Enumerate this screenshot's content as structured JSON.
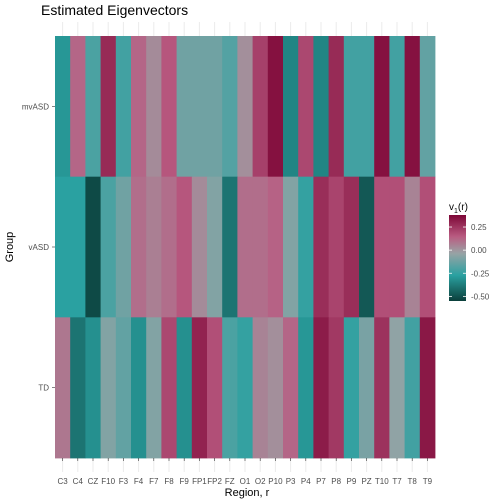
{
  "chart_data": {
    "type": "heatmap",
    "title": "Estimated Eigenvectors",
    "xlabel": "Region, r",
    "ylabel": "Group",
    "x_categories": [
      "C3",
      "C4",
      "CZ",
      "F10",
      "F3",
      "F4",
      "F7",
      "F8",
      "F9",
      "FP1",
      "FP2",
      "FZ",
      "O1",
      "O2",
      "P10",
      "P3",
      "P4",
      "P7",
      "P8",
      "P9",
      "PZ",
      "T10",
      "T7",
      "T8",
      "T9"
    ],
    "y_categories": [
      "mvASD",
      "vASD",
      "TD"
    ],
    "values": {
      "mvASD": [
        -0.3,
        0.12,
        -0.2,
        0.28,
        -0.22,
        0.12,
        0.03,
        0.16,
        -0.12,
        -0.12,
        -0.12,
        -0.18,
        0.02,
        0.22,
        0.35,
        -0.35,
        0.2,
        -0.35,
        0.28,
        -0.22,
        -0.22,
        0.35,
        -0.22,
        0.35,
        -0.15
      ],
      "vASD": [
        -0.27,
        -0.27,
        -0.52,
        -0.2,
        -0.12,
        0.1,
        0.06,
        0.1,
        0.16,
        0.03,
        -0.08,
        -0.4,
        0.1,
        0.1,
        0.13,
        -0.08,
        -0.25,
        0.27,
        0.21,
        0.27,
        -0.48,
        0.18,
        0.18,
        0.05,
        0.18
      ],
      "TD": [
        0.08,
        -0.4,
        -0.32,
        -0.08,
        -0.15,
        -0.32,
        -0.08,
        0.2,
        -0.32,
        0.3,
        0.18,
        -0.2,
        -0.25,
        0.05,
        0.02,
        0.12,
        -0.3,
        0.32,
        0.24,
        -0.25,
        -0.1,
        0.26,
        -0.05,
        -0.22,
        0.33
      ]
    },
    "legend": {
      "title_main": "v",
      "title_sub": "1",
      "title_rest": "(r)",
      "breaks": [
        0.25,
        0.0,
        -0.25,
        -0.5
      ],
      "break_labels": [
        "0.25",
        "0.00",
        "-0.25",
        "-0.50"
      ],
      "limits": [
        -0.55,
        0.38
      ],
      "placement": "right"
    },
    "color_scale": {
      "low": "#0b3f3b",
      "mid_low": "#2aa1a1",
      "mid": "#9aa3a5",
      "mid_high": "#b95b81",
      "high": "#7d0636"
    },
    "grid": true,
    "panel_background": "#ffffff"
  }
}
